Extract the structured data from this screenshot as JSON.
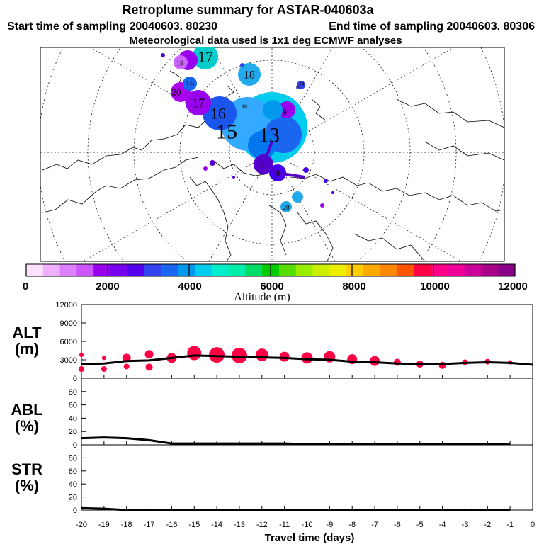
{
  "header": {
    "title": "Retroplume summary for ASTAR-040603a",
    "start": "Start time of sampling 20040603. 80230",
    "end": "End time of sampling 20040603. 80306",
    "met": "Meteorological data used is 1x1 deg ECMWF analyses"
  },
  "map": {
    "description_free": true,
    "labels": [
      {
        "text": "17",
        "lon_deg": 140,
        "r": 0.85,
        "size": 22,
        "color": "#00cccc"
      },
      {
        "text": "19",
        "lon_deg": 150,
        "r": 0.93,
        "size": 10,
        "color": "#cc66ff"
      },
      {
        "text": "18",
        "lon_deg": 80,
        "r": 0.55,
        "size": 16,
        "color": "#22aaee"
      },
      {
        "text": "16",
        "lon_deg": 165,
        "r": 0.62,
        "size": 12,
        "color": "#1a66ee"
      },
      {
        "text": "20",
        "lon_deg": 175,
        "r": 0.85,
        "size": 13,
        "color": "#aa00ee"
      },
      {
        "text": "17",
        "lon_deg": 195,
        "r": 0.5,
        "size": 18,
        "color": "#9900ee"
      },
      {
        "text": "16",
        "lon_deg": 210,
        "r": 0.33,
        "size": 22,
        "color": "#1a55ee"
      },
      {
        "text": "15",
        "lon_deg": 250,
        "r": 0.2,
        "size": 30,
        "color": "#00ccee"
      },
      {
        "text": "13",
        "lon_deg": 300,
        "r": 0.12,
        "size": 30,
        "color": "#0077ee"
      },
      {
        "text": "9",
        "lon_deg": 20,
        "r": 0.28,
        "size": 12,
        "color": "#9900ee"
      },
      {
        "text": "4",
        "lon_deg": 330,
        "r": 0.3,
        "size": 12,
        "color": "#4400ee"
      },
      {
        "text": "2",
        "lon_deg": 290,
        "r": 0.2,
        "size": 10,
        "color": "#5500cc"
      },
      {
        "text": "18",
        "lon_deg": 300,
        "r": 0.55,
        "size": 8,
        "color": "#22aaee"
      },
      {
        "text": "20",
        "lon_deg": 290,
        "r": 0.75,
        "size": 9,
        "color": "#22aaee"
      },
      {
        "text": "14",
        "lon_deg": 40,
        "r": 0.5,
        "size": 7,
        "color": "#4400ee"
      },
      {
        "text": "16",
        "lon_deg": 45,
        "r": 0.45,
        "size": 6,
        "color": "#1a66ee"
      }
    ]
  },
  "colorbar": {
    "ticks": [
      "0",
      "2000",
      "4000",
      "6000",
      "8000",
      "10000",
      "12000"
    ],
    "label": "Altitude (m)",
    "colors": [
      "#ffe0ff",
      "#f0b0ff",
      "#dd80ff",
      "#cc55ff",
      "#9900ee",
      "#7700ee",
      "#5500ee",
      "#3344ee",
      "#1a66ee",
      "#0099ee",
      "#00ccee",
      "#00eecc",
      "#00eeaa",
      "#00dd66",
      "#00cc00",
      "#55dd00",
      "#99ee00",
      "#ccee00",
      "#eeee00",
      "#ffcc00",
      "#ffaa00",
      "#ff8800",
      "#ff5500",
      "#ff0044",
      "#ff0088",
      "#ee0099",
      "#cc0099",
      "#aa0088",
      "#880088"
    ]
  },
  "chart_data": [
    {
      "type": "line",
      "panel": "ALT",
      "ylabel_line1": "ALT",
      "ylabel_line2": "(m)",
      "ylim": [
        0,
        12000
      ],
      "yticks": [
        "0",
        "3000",
        "6000",
        "9000",
        "12000"
      ],
      "x": [
        -20,
        -19,
        -18,
        -17,
        -16,
        -15,
        -14,
        -13,
        -12,
        -11,
        -10,
        -9,
        -8,
        -7,
        -6,
        -5,
        -4,
        -3,
        -2,
        -1,
        0
      ],
      "mean": [
        2300,
        2400,
        2800,
        2900,
        3300,
        3700,
        3600,
        3500,
        3400,
        3300,
        3100,
        3000,
        2700,
        2600,
        2400,
        2300,
        2300,
        2500,
        2600,
        2500,
        2200
      ],
      "clusters": [
        {
          "x": -20,
          "y": 3800,
          "s": 3
        },
        {
          "x": -20,
          "y": 1500,
          "s": 4
        },
        {
          "x": -19,
          "y": 3300,
          "s": 3
        },
        {
          "x": -19,
          "y": 1500,
          "s": 4
        },
        {
          "x": -18,
          "y": 3300,
          "s": 6
        },
        {
          "x": -18,
          "y": 1900,
          "s": 4
        },
        {
          "x": -17,
          "y": 3900,
          "s": 6
        },
        {
          "x": -17,
          "y": 1800,
          "s": 5
        },
        {
          "x": -16,
          "y": 3300,
          "s": 7
        },
        {
          "x": -15,
          "y": 4100,
          "s": 10
        },
        {
          "x": -14,
          "y": 3800,
          "s": 11
        },
        {
          "x": -13,
          "y": 3700,
          "s": 11
        },
        {
          "x": -12,
          "y": 3800,
          "s": 9
        },
        {
          "x": -11,
          "y": 3500,
          "s": 7
        },
        {
          "x": -10,
          "y": 3300,
          "s": 8
        },
        {
          "x": -9,
          "y": 3500,
          "s": 8
        },
        {
          "x": -8,
          "y": 3100,
          "s": 7
        },
        {
          "x": -7,
          "y": 2800,
          "s": 7
        },
        {
          "x": -6,
          "y": 2600,
          "s": 5
        },
        {
          "x": -5,
          "y": 2300,
          "s": 5
        },
        {
          "x": -4,
          "y": 2100,
          "s": 5
        },
        {
          "x": -3,
          "y": 2600,
          "s": 4
        },
        {
          "x": -2,
          "y": 2700,
          "s": 4
        },
        {
          "x": -1,
          "y": 2600,
          "s": 3
        }
      ]
    },
    {
      "type": "line",
      "panel": "ABL",
      "ylabel_line1": "ABL",
      "ylabel_line2": "(%)",
      "ylim": [
        0,
        100
      ],
      "yticks": [
        "0",
        "20",
        "40",
        "60",
        "80"
      ],
      "x": [
        -20,
        -19,
        -18,
        -17,
        -16,
        -15,
        -14,
        -13,
        -12,
        -11,
        -10,
        -9,
        -8,
        -7,
        -6,
        -5,
        -4,
        -3,
        -2,
        -1
      ],
      "values": [
        10,
        11,
        10,
        7,
        2,
        2,
        2,
        2,
        2,
        2,
        1,
        1,
        1,
        1,
        1,
        1,
        1,
        1,
        1,
        1
      ]
    },
    {
      "type": "line",
      "panel": "STR",
      "ylabel_line1": "STR",
      "ylabel_line2": "(%)",
      "ylim": [
        0,
        100
      ],
      "yticks": [
        "0",
        "20",
        "40",
        "60",
        "80"
      ],
      "x": [
        -20,
        -19,
        -18,
        -17,
        -16,
        -15,
        -14,
        -13,
        -12,
        -11,
        -10,
        -9,
        -8,
        -7,
        -6,
        -5,
        -4,
        -3,
        -2,
        -1
      ],
      "values": [
        3,
        2,
        0,
        0,
        0,
        0,
        0,
        0,
        0,
        0,
        0,
        0,
        0,
        0,
        0,
        0,
        0,
        0,
        0,
        0
      ]
    }
  ],
  "xaxis": {
    "ticks": [
      "-20",
      "-19",
      "-18",
      "-17",
      "-16",
      "-15",
      "-14",
      "-13",
      "-12",
      "-11",
      "-10",
      "-9",
      "-8",
      "-7",
      "-6",
      "-5",
      "-4",
      "-3",
      "-2",
      "-1",
      "0"
    ],
    "label": "Travel time (days)"
  }
}
